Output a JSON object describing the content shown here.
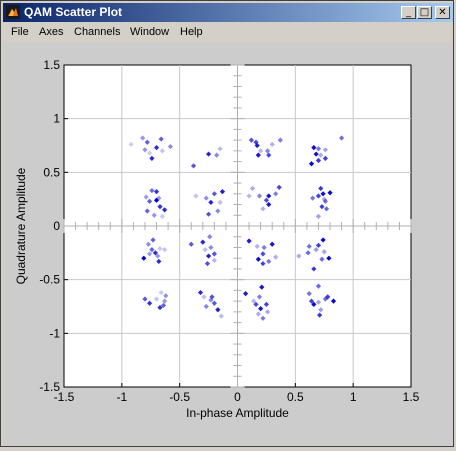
{
  "window": {
    "title": "QAM Scatter Plot",
    "minimize_icon": "minimize-icon",
    "maximize_icon": "maximize-icon",
    "close_icon": "close-icon"
  },
  "menu": [
    {
      "label": "File"
    },
    {
      "label": "Axes"
    },
    {
      "label": "Channels"
    },
    {
      "label": "Window"
    },
    {
      "label": "Help"
    }
  ],
  "colors": {
    "titlebar_start": "#0a246a",
    "titlebar_end": "#a6caf0",
    "background": "#d4d0c8",
    "figure_bg": "#cccccc",
    "axes_bg": "#ffffff",
    "marker": "#0000cc"
  },
  "chart_data": {
    "type": "scatter",
    "title": "",
    "xlabel": "In-phase Amplitude",
    "ylabel": "Quadrature Amplitude",
    "xlim": [
      -1.5,
      1.5
    ],
    "ylim": [
      -1.5,
      1.5
    ],
    "xticks": [
      "-1.5",
      "-1",
      "-0.5",
      "0",
      "0.5",
      "1",
      "1.5"
    ],
    "yticks": [
      "1.5",
      "1",
      "0.5",
      "0",
      "-0.5",
      "-1",
      "-1.5"
    ],
    "grid": true,
    "marker": "diamond",
    "points": [
      [
        -0.92,
        0.76
      ],
      [
        -0.82,
        0.82
      ],
      [
        -0.78,
        0.78
      ],
      [
        -0.7,
        0.73
      ],
      [
        -0.76,
        0.68
      ],
      [
        -0.8,
        0.71
      ],
      [
        -0.66,
        0.81
      ],
      [
        -0.74,
        0.63
      ],
      [
        -0.65,
        0.7
      ],
      [
        -0.58,
        0.74
      ],
      [
        -0.38,
        0.56
      ],
      [
        -0.25,
        0.67
      ],
      [
        -0.15,
        0.72
      ],
      [
        -0.18,
        0.66
      ],
      [
        0.12,
        0.8
      ],
      [
        0.17,
        0.75
      ],
      [
        0.2,
        0.7
      ],
      [
        0.26,
        0.7
      ],
      [
        0.27,
        0.66
      ],
      [
        0.18,
        0.66
      ],
      [
        0.3,
        0.76
      ],
      [
        0.37,
        0.8
      ],
      [
        0.16,
        0.78
      ],
      [
        0.68,
        0.67
      ],
      [
        0.72,
        0.66
      ],
      [
        0.7,
        0.72
      ],
      [
        0.76,
        0.63
      ],
      [
        0.66,
        0.73
      ],
      [
        0.76,
        0.71
      ],
      [
        0.9,
        0.82
      ],
      [
        0.7,
        0.61
      ],
      [
        0.64,
        0.58
      ],
      [
        -0.79,
        0.27
      ],
      [
        -0.74,
        0.33
      ],
      [
        -0.7,
        0.32
      ],
      [
        -0.7,
        0.24
      ],
      [
        -0.68,
        0.26
      ],
      [
        -0.78,
        0.14
      ],
      [
        -0.67,
        0.18
      ],
      [
        -0.65,
        0.09
      ],
      [
        -0.72,
        0.1
      ],
      [
        -0.76,
        0.23
      ],
      [
        -0.63,
        0.15
      ],
      [
        -0.36,
        0.28
      ],
      [
        -0.27,
        0.26
      ],
      [
        -0.2,
        0.3
      ],
      [
        -0.23,
        0.22
      ],
      [
        -0.15,
        0.22
      ],
      [
        -0.17,
        0.14
      ],
      [
        -0.25,
        0.11
      ],
      [
        -0.13,
        0.32
      ],
      [
        0.1,
        0.28
      ],
      [
        0.19,
        0.28
      ],
      [
        0.25,
        0.24
      ],
      [
        0.27,
        0.2
      ],
      [
        0.22,
        0.16
      ],
      [
        0.33,
        0.3
      ],
      [
        0.36,
        0.36
      ],
      [
        0.27,
        0.28
      ],
      [
        0.13,
        0.35
      ],
      [
        0.65,
        0.26
      ],
      [
        0.7,
        0.28
      ],
      [
        0.74,
        0.3
      ],
      [
        0.75,
        0.25
      ],
      [
        0.76,
        0.23
      ],
      [
        0.73,
        0.18
      ],
      [
        0.8,
        0.31
      ],
      [
        0.7,
        0.09
      ],
      [
        0.77,
        0.16
      ],
      [
        0.72,
        0.35
      ],
      [
        -0.81,
        -0.3
      ],
      [
        -0.76,
        -0.26
      ],
      [
        -0.74,
        -0.22
      ],
      [
        -0.71,
        -0.25
      ],
      [
        -0.67,
        -0.21
      ],
      [
        -0.69,
        -0.28
      ],
      [
        -0.73,
        -0.13
      ],
      [
        -0.68,
        -0.33
      ],
      [
        -0.63,
        -0.22
      ],
      [
        -0.77,
        -0.17
      ],
      [
        -0.4,
        -0.17
      ],
      [
        -0.3,
        -0.15
      ],
      [
        -0.28,
        -0.22
      ],
      [
        -0.23,
        -0.2
      ],
      [
        -0.2,
        -0.26
      ],
      [
        -0.25,
        -0.28
      ],
      [
        -0.2,
        -0.32
      ],
      [
        -0.24,
        -0.1
      ],
      [
        -0.26,
        -0.35
      ],
      [
        0.1,
        -0.14
      ],
      [
        0.17,
        -0.19
      ],
      [
        0.23,
        -0.2
      ],
      [
        0.22,
        -0.26
      ],
      [
        0.3,
        -0.17
      ],
      [
        0.33,
        -0.29
      ],
      [
        0.27,
        -0.33
      ],
      [
        0.22,
        -0.35
      ],
      [
        0.18,
        -0.31
      ],
      [
        0.53,
        -0.28
      ],
      [
        0.62,
        -0.19
      ],
      [
        0.7,
        -0.18
      ],
      [
        0.74,
        -0.13
      ],
      [
        0.75,
        -0.24
      ],
      [
        0.73,
        -0.31
      ],
      [
        0.66,
        -0.4
      ],
      [
        0.79,
        -0.3
      ],
      [
        0.68,
        -0.22
      ],
      [
        0.61,
        -0.25
      ],
      [
        -0.76,
        -0.72
      ],
      [
        -0.66,
        -0.62
      ],
      [
        -0.63,
        -0.7
      ],
      [
        -0.64,
        -0.74
      ],
      [
        -0.67,
        -0.76
      ],
      [
        -0.7,
        -0.68
      ],
      [
        -0.62,
        -0.65
      ],
      [
        -0.8,
        -0.68
      ],
      [
        -0.32,
        -0.62
      ],
      [
        -0.29,
        -0.66
      ],
      [
        -0.23,
        -0.69
      ],
      [
        -0.2,
        -0.72
      ],
      [
        -0.17,
        -0.78
      ],
      [
        -0.14,
        -0.84
      ],
      [
        -0.27,
        -0.75
      ],
      [
        -0.22,
        -0.66
      ],
      [
        0.07,
        -0.63
      ],
      [
        0.14,
        -0.7
      ],
      [
        0.19,
        -0.66
      ],
      [
        0.16,
        -0.73
      ],
      [
        0.2,
        -0.77
      ],
      [
        0.18,
        -0.82
      ],
      [
        0.22,
        -0.86
      ],
      [
        0.25,
        -0.73
      ],
      [
        0.21,
        -0.57
      ],
      [
        0.26,
        -0.8
      ],
      [
        0.62,
        -0.63
      ],
      [
        0.64,
        -0.7
      ],
      [
        0.66,
        -0.73
      ],
      [
        0.7,
        -0.71
      ],
      [
        0.76,
        -0.68
      ],
      [
        0.78,
        -0.66
      ],
      [
        0.83,
        -0.7
      ],
      [
        0.72,
        -0.78
      ],
      [
        0.7,
        -0.56
      ],
      [
        0.71,
        -0.83
      ]
    ]
  }
}
